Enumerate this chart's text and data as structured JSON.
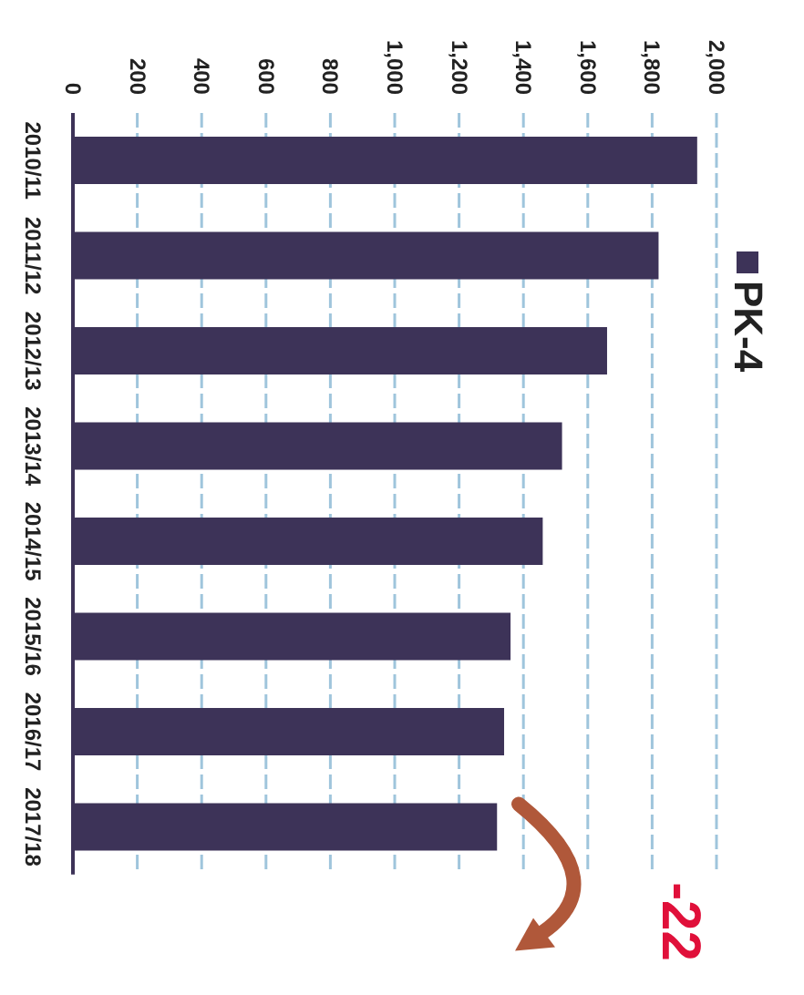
{
  "chart_data": {
    "type": "bar",
    "orientation": "horizontal",
    "categories": [
      "2010/11",
      "2011/12",
      "2012/13",
      "2013/14",
      "2014/15",
      "2015/16",
      "2016/17",
      "2017/18"
    ],
    "series": [
      {
        "name": "PK-4",
        "color": "#3d3358",
        "values": [
          1940,
          1820,
          1660,
          1520,
          1460,
          1360,
          1340,
          1318
        ]
      }
    ],
    "xlim": [
      0,
      2000
    ],
    "xticks": [
      0,
      200,
      400,
      600,
      800,
      {
        "value": 1000,
        "label": "1,000"
      },
      {
        "value": 1200,
        "label": "1,200"
      },
      {
        "value": 1400,
        "label": "1,400"
      },
      {
        "value": 1600,
        "label": "1,600"
      },
      {
        "value": 1800,
        "label": "1,800"
      },
      {
        "value": 2000,
        "label": "2,000"
      }
    ],
    "grid": "x",
    "legend": "right",
    "annotations": [
      "-22"
    ]
  }
}
